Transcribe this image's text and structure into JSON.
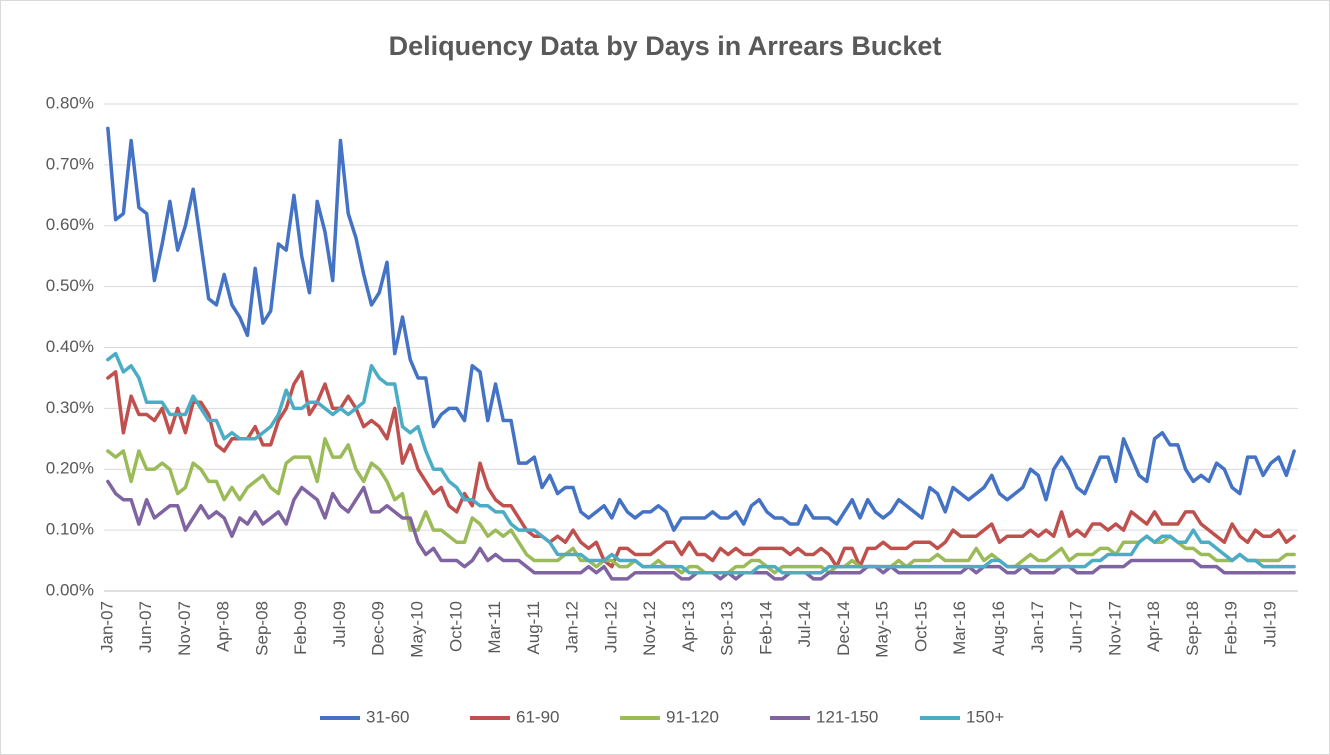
{
  "chart_data": {
    "type": "line",
    "title": "Deliquency Data by Days in Arrears Bucket",
    "categories": [
      "Jan-07",
      null,
      null,
      null,
      null,
      "Jun-07",
      null,
      null,
      null,
      null,
      "Nov-07",
      null,
      null,
      null,
      null,
      "Apr-08",
      null,
      null,
      null,
      null,
      "Sep-08",
      null,
      null,
      null,
      null,
      "Feb-09",
      null,
      null,
      null,
      null,
      "Jul-09",
      null,
      null,
      null,
      null,
      "Dec-09",
      null,
      null,
      null,
      null,
      "May-10",
      null,
      null,
      null,
      null,
      "Oct-10",
      null,
      null,
      null,
      null,
      "Mar-11",
      null,
      null,
      null,
      null,
      "Aug-11",
      null,
      null,
      null,
      null,
      "Jan-12",
      null,
      null,
      null,
      null,
      "Jun-12",
      null,
      null,
      null,
      null,
      "Nov-12",
      null,
      null,
      null,
      null,
      "Apr-13",
      null,
      null,
      null,
      null,
      "Sep-13",
      null,
      null,
      null,
      null,
      "Feb-14",
      null,
      null,
      null,
      null,
      "Jul-14",
      null,
      null,
      null,
      null,
      "Dec-14",
      null,
      null,
      null,
      null,
      "May-15",
      null,
      null,
      null,
      null,
      "Oct-15",
      null,
      null,
      null,
      null,
      "Mar-16",
      null,
      null,
      null,
      null,
      "Aug-16",
      null,
      null,
      null,
      null,
      "Jan-17",
      null,
      null,
      null,
      null,
      "Jun-17",
      null,
      null,
      null,
      null,
      "Nov-17",
      null,
      null,
      null,
      null,
      "Apr-18",
      null,
      null,
      null,
      null,
      "Sep-18",
      null,
      null,
      null,
      null,
      "Feb-19",
      null,
      null,
      null,
      null,
      "Jul-19",
      null,
      null,
      null
    ],
    "series": [
      {
        "name": "31-60",
        "color": "#4472c4",
        "values": [
          0.76,
          0.61,
          0.62,
          0.74,
          0.63,
          0.62,
          0.51,
          0.57,
          0.64,
          0.56,
          0.6,
          0.66,
          0.57,
          0.48,
          0.47,
          0.52,
          0.47,
          0.45,
          0.42,
          0.53,
          0.44,
          0.46,
          0.57,
          0.56,
          0.65,
          0.55,
          0.49,
          0.64,
          0.59,
          0.51,
          0.74,
          0.62,
          0.58,
          0.52,
          0.47,
          0.49,
          0.54,
          0.39,
          0.45,
          0.38,
          0.35,
          0.35,
          0.27,
          0.29,
          0.3,
          0.3,
          0.28,
          0.37,
          0.36,
          0.28,
          0.34,
          0.28,
          0.28,
          0.21,
          0.21,
          0.22,
          0.17,
          0.19,
          0.16,
          0.17,
          0.17,
          0.13,
          0.12,
          0.13,
          0.14,
          0.12,
          0.15,
          0.13,
          0.12,
          0.13,
          0.13,
          0.14,
          0.13,
          0.1,
          0.12,
          0.12,
          0.12,
          0.12,
          0.13,
          0.12,
          0.12,
          0.13,
          0.11,
          0.14,
          0.15,
          0.13,
          0.12,
          0.12,
          0.11,
          0.11,
          0.14,
          0.12,
          0.12,
          0.12,
          0.11,
          0.13,
          0.15,
          0.12,
          0.15,
          0.13,
          0.12,
          0.13,
          0.15,
          0.14,
          0.13,
          0.12,
          0.17,
          0.16,
          0.13,
          0.17,
          0.16,
          0.15,
          0.16,
          0.17,
          0.19,
          0.16,
          0.15,
          0.16,
          0.17,
          0.2,
          0.19,
          0.15,
          0.2,
          0.22,
          0.2,
          0.17,
          0.16,
          0.19,
          0.22,
          0.22,
          0.18,
          0.25,
          0.22,
          0.19,
          0.18,
          0.25,
          0.26,
          0.24,
          0.24,
          0.2,
          0.18,
          0.19,
          0.18,
          0.21,
          0.2,
          0.17,
          0.16,
          0.22,
          0.22,
          0.19,
          0.21,
          0.22,
          0.19,
          0.23
        ]
      },
      {
        "name": "61-90",
        "color": "#c0504d",
        "values": [
          0.35,
          0.36,
          0.26,
          0.32,
          0.29,
          0.29,
          0.28,
          0.3,
          0.26,
          0.3,
          0.26,
          0.31,
          0.31,
          0.29,
          0.24,
          0.23,
          0.25,
          0.25,
          0.25,
          0.27,
          0.24,
          0.24,
          0.28,
          0.3,
          0.34,
          0.36,
          0.29,
          0.31,
          0.34,
          0.3,
          0.3,
          0.32,
          0.3,
          0.27,
          0.28,
          0.27,
          0.25,
          0.3,
          0.21,
          0.24,
          0.2,
          0.18,
          0.16,
          0.17,
          0.14,
          0.13,
          0.16,
          0.14,
          0.21,
          0.17,
          0.15,
          0.14,
          0.14,
          0.12,
          0.1,
          0.09,
          0.09,
          0.08,
          0.09,
          0.08,
          0.1,
          0.08,
          0.07,
          0.08,
          0.05,
          0.04,
          0.07,
          0.07,
          0.06,
          0.06,
          0.06,
          0.07,
          0.08,
          0.08,
          0.06,
          0.08,
          0.06,
          0.06,
          0.05,
          0.07,
          0.06,
          0.07,
          0.06,
          0.06,
          0.07,
          0.07,
          0.07,
          0.07,
          0.06,
          0.07,
          0.06,
          0.06,
          0.07,
          0.06,
          0.04,
          0.07,
          0.07,
          0.04,
          0.07,
          0.07,
          0.08,
          0.07,
          0.07,
          0.07,
          0.08,
          0.08,
          0.08,
          0.07,
          0.08,
          0.1,
          0.09,
          0.09,
          0.09,
          0.1,
          0.11,
          0.08,
          0.09,
          0.09,
          0.09,
          0.1,
          0.09,
          0.1,
          0.09,
          0.13,
          0.09,
          0.1,
          0.09,
          0.11,
          0.11,
          0.1,
          0.11,
          0.1,
          0.13,
          0.12,
          0.11,
          0.13,
          0.11,
          0.11,
          0.11,
          0.13,
          0.13,
          0.11,
          0.1,
          0.09,
          0.08,
          0.11,
          0.09,
          0.08,
          0.1,
          0.09,
          0.09,
          0.1,
          0.08,
          0.09
        ]
      },
      {
        "name": "91-120",
        "color": "#9bbb59",
        "values": [
          0.23,
          0.22,
          0.23,
          0.18,
          0.23,
          0.2,
          0.2,
          0.21,
          0.2,
          0.16,
          0.17,
          0.21,
          0.2,
          0.18,
          0.18,
          0.15,
          0.17,
          0.15,
          0.17,
          0.18,
          0.19,
          0.17,
          0.16,
          0.21,
          0.22,
          0.22,
          0.22,
          0.18,
          0.25,
          0.22,
          0.22,
          0.24,
          0.2,
          0.18,
          0.21,
          0.2,
          0.18,
          0.15,
          0.16,
          0.1,
          0.1,
          0.13,
          0.1,
          0.1,
          0.09,
          0.08,
          0.08,
          0.12,
          0.11,
          0.09,
          0.1,
          0.09,
          0.1,
          0.08,
          0.06,
          0.05,
          0.05,
          0.05,
          0.05,
          0.06,
          0.07,
          0.05,
          0.05,
          0.04,
          0.05,
          0.05,
          0.04,
          0.04,
          0.05,
          0.04,
          0.04,
          0.05,
          0.04,
          0.04,
          0.03,
          0.04,
          0.04,
          0.03,
          0.03,
          0.03,
          0.03,
          0.04,
          0.04,
          0.05,
          0.05,
          0.04,
          0.03,
          0.04,
          0.04,
          0.04,
          0.04,
          0.04,
          0.04,
          0.03,
          0.04,
          0.04,
          0.05,
          0.04,
          0.04,
          0.04,
          0.04,
          0.04,
          0.05,
          0.04,
          0.05,
          0.05,
          0.05,
          0.06,
          0.05,
          0.05,
          0.05,
          0.05,
          0.07,
          0.05,
          0.06,
          0.05,
          0.04,
          0.04,
          0.05,
          0.06,
          0.05,
          0.05,
          0.06,
          0.07,
          0.05,
          0.06,
          0.06,
          0.06,
          0.07,
          0.07,
          0.06,
          0.08,
          0.08,
          0.08,
          0.09,
          0.08,
          0.08,
          0.09,
          0.08,
          0.07,
          0.07,
          0.06,
          0.06,
          0.05,
          0.05,
          0.05,
          0.06,
          0.05,
          0.05,
          0.05,
          0.05,
          0.05,
          0.06,
          0.06
        ]
      },
      {
        "name": "121-150",
        "color": "#8064a2",
        "values": [
          0.18,
          0.16,
          0.15,
          0.15,
          0.11,
          0.15,
          0.12,
          0.13,
          0.14,
          0.14,
          0.1,
          0.12,
          0.14,
          0.12,
          0.13,
          0.12,
          0.09,
          0.12,
          0.11,
          0.13,
          0.11,
          0.12,
          0.13,
          0.11,
          0.15,
          0.17,
          0.16,
          0.15,
          0.12,
          0.16,
          0.14,
          0.13,
          0.15,
          0.17,
          0.13,
          0.13,
          0.14,
          0.13,
          0.12,
          0.12,
          0.08,
          0.06,
          0.07,
          0.05,
          0.05,
          0.05,
          0.04,
          0.05,
          0.07,
          0.05,
          0.06,
          0.05,
          0.05,
          0.05,
          0.04,
          0.03,
          0.03,
          0.03,
          0.03,
          0.03,
          0.03,
          0.03,
          0.04,
          0.03,
          0.04,
          0.02,
          0.02,
          0.02,
          0.03,
          0.03,
          0.03,
          0.03,
          0.03,
          0.03,
          0.02,
          0.02,
          0.03,
          0.03,
          0.03,
          0.02,
          0.03,
          0.02,
          0.03,
          0.03,
          0.03,
          0.03,
          0.02,
          0.02,
          0.03,
          0.03,
          0.03,
          0.02,
          0.02,
          0.03,
          0.03,
          0.03,
          0.03,
          0.03,
          0.04,
          0.04,
          0.03,
          0.04,
          0.03,
          0.03,
          0.03,
          0.03,
          0.03,
          0.03,
          0.03,
          0.03,
          0.03,
          0.04,
          0.03,
          0.04,
          0.04,
          0.04,
          0.03,
          0.03,
          0.04,
          0.03,
          0.03,
          0.03,
          0.03,
          0.04,
          0.04,
          0.03,
          0.03,
          0.03,
          0.04,
          0.04,
          0.04,
          0.04,
          0.05,
          0.05,
          0.05,
          0.05,
          0.05,
          0.05,
          0.05,
          0.05,
          0.05,
          0.04,
          0.04,
          0.04,
          0.03,
          0.03,
          0.03,
          0.03,
          0.03,
          0.03,
          0.03,
          0.03,
          0.03,
          0.03
        ]
      },
      {
        "name": "150+",
        "color": "#4bacc6",
        "values": [
          0.38,
          0.39,
          0.36,
          0.37,
          0.35,
          0.31,
          0.31,
          0.31,
          0.29,
          0.29,
          0.29,
          0.32,
          0.3,
          0.28,
          0.28,
          0.25,
          0.26,
          0.25,
          0.25,
          0.25,
          0.26,
          0.27,
          0.29,
          0.33,
          0.3,
          0.3,
          0.31,
          0.31,
          0.3,
          0.29,
          0.3,
          0.29,
          0.3,
          0.31,
          0.37,
          0.35,
          0.34,
          0.34,
          0.27,
          0.26,
          0.27,
          0.23,
          0.2,
          0.2,
          0.18,
          0.17,
          0.15,
          0.15,
          0.14,
          0.14,
          0.13,
          0.13,
          0.11,
          0.1,
          0.1,
          0.1,
          0.09,
          0.08,
          0.06,
          0.06,
          0.06,
          0.06,
          0.05,
          0.05,
          0.05,
          0.06,
          0.05,
          0.05,
          0.05,
          0.04,
          0.04,
          0.04,
          0.04,
          0.04,
          0.04,
          0.03,
          0.03,
          0.03,
          0.03,
          0.03,
          0.03,
          0.03,
          0.03,
          0.03,
          0.04,
          0.04,
          0.04,
          0.03,
          0.03,
          0.03,
          0.03,
          0.03,
          0.03,
          0.04,
          0.04,
          0.04,
          0.04,
          0.04,
          0.04,
          0.04,
          0.04,
          0.04,
          0.04,
          0.04,
          0.04,
          0.04,
          0.04,
          0.04,
          0.04,
          0.04,
          0.04,
          0.04,
          0.04,
          0.04,
          0.05,
          0.05,
          0.04,
          0.04,
          0.04,
          0.04,
          0.04,
          0.04,
          0.04,
          0.04,
          0.04,
          0.04,
          0.04,
          0.05,
          0.05,
          0.06,
          0.06,
          0.06,
          0.06,
          0.08,
          0.09,
          0.08,
          0.09,
          0.09,
          0.08,
          0.08,
          0.1,
          0.08,
          0.08,
          0.07,
          0.06,
          0.05,
          0.06,
          0.05,
          0.05,
          0.04,
          0.04,
          0.04,
          0.04,
          0.04
        ]
      }
    ],
    "ylim": [
      0,
      0.8
    ],
    "yticks": [
      {
        "value": 0,
        "label": "0.00%"
      },
      {
        "value": 0.1,
        "label": "0.10%"
      },
      {
        "value": 0.2,
        "label": "0.20%"
      },
      {
        "value": 0.3,
        "label": "0.30%"
      },
      {
        "value": 0.4,
        "label": "0.40%"
      },
      {
        "value": 0.5,
        "label": "0.50%"
      },
      {
        "value": 0.6,
        "label": "0.60%"
      },
      {
        "value": 0.7,
        "label": "0.70%"
      },
      {
        "value": 0.8,
        "label": "0.80%"
      }
    ],
    "grid": true,
    "legend": "bottom"
  }
}
